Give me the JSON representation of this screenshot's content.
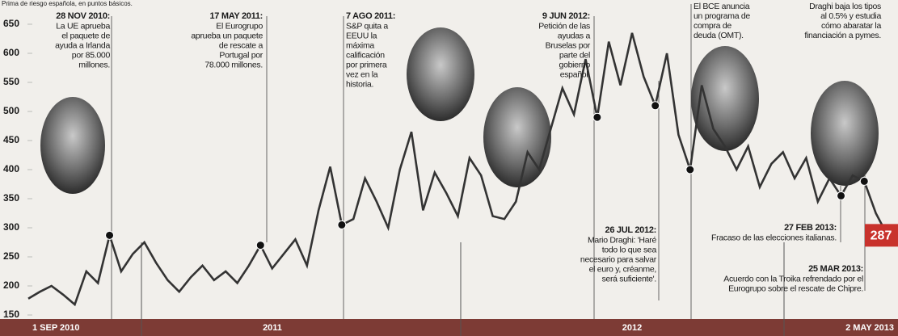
{
  "chart_data": {
    "type": "line",
    "subtitle": "Prima de riesgo española, en puntos básicos.",
    "values": [
      178,
      190,
      200,
      185,
      168,
      225,
      205,
      287,
      225,
      255,
      275,
      240,
      210,
      190,
      215,
      235,
      210,
      225,
      205,
      235,
      270,
      230,
      255,
      280,
      235,
      330,
      405,
      305,
      315,
      385,
      345,
      300,
      400,
      465,
      330,
      395,
      360,
      320,
      420,
      390,
      320,
      315,
      345,
      430,
      400,
      470,
      540,
      495,
      590,
      490,
      620,
      545,
      635,
      560,
      510,
      600,
      460,
      400,
      545,
      470,
      440,
      400,
      440,
      370,
      410,
      430,
      385,
      420,
      345,
      385,
      355,
      390,
      380,
      325,
      287
    ],
    "color": "#333333",
    "ylim": [
      150,
      650
    ],
    "yticks": [
      150,
      200,
      250,
      300,
      350,
      400,
      450,
      500,
      550,
      600,
      650
    ],
    "period_labels": [
      "1 SEP 2010",
      "2011",
      "2012",
      "2 MAY 2013"
    ],
    "annotations": [
      {
        "date": "28 NOV 2010:",
        "lines": [
          "La UE aprueba",
          "el paquete de",
          "ayuda a Irlanda",
          "por 85.000",
          "millones."
        ]
      },
      {
        "date": "17 MAY 2011:",
        "lines": [
          "El Eurogrupo",
          "aprueba un paquete",
          "de rescate a",
          "Portugal por",
          "78.000 millones."
        ]
      },
      {
        "date": "7 AGO 2011:",
        "lines": [
          "S&P quita a",
          "EEUU la",
          "máxima",
          "calificación",
          "por primera",
          "vez en la",
          "historia."
        ]
      },
      {
        "date": "9 JUN 2012:",
        "lines": [
          "Petición de las",
          "ayudas a",
          "Bruselas por",
          "parte del",
          "gobierno",
          "español."
        ]
      },
      {
        "date": "26 JUL 2012:",
        "lines": [
          "Mario Draghi: 'Haré",
          "todo lo que sea",
          "necesario para salvar",
          "el euro y, créanme,",
          "será suficiente'."
        ]
      },
      {
        "lines": [
          "El BCE anuncia",
          "un programa de",
          "compra de",
          "deuda (OMT)."
        ]
      },
      {
        "date": "27 FEB 2013:",
        "lines": [
          "Fracaso de las elecciones italianas."
        ]
      },
      {
        "date": "25 MAR 2013:",
        "lines": [
          "Acuerdo con la Troika refrendado por el",
          "Eurogrupo sobre el rescate de Chipre."
        ]
      },
      {
        "lines": [
          "Draghi baja los tipos",
          "al 0.5% y estudia",
          "cómo abaratar la",
          "financiación a pymes."
        ]
      }
    ]
  }
}
